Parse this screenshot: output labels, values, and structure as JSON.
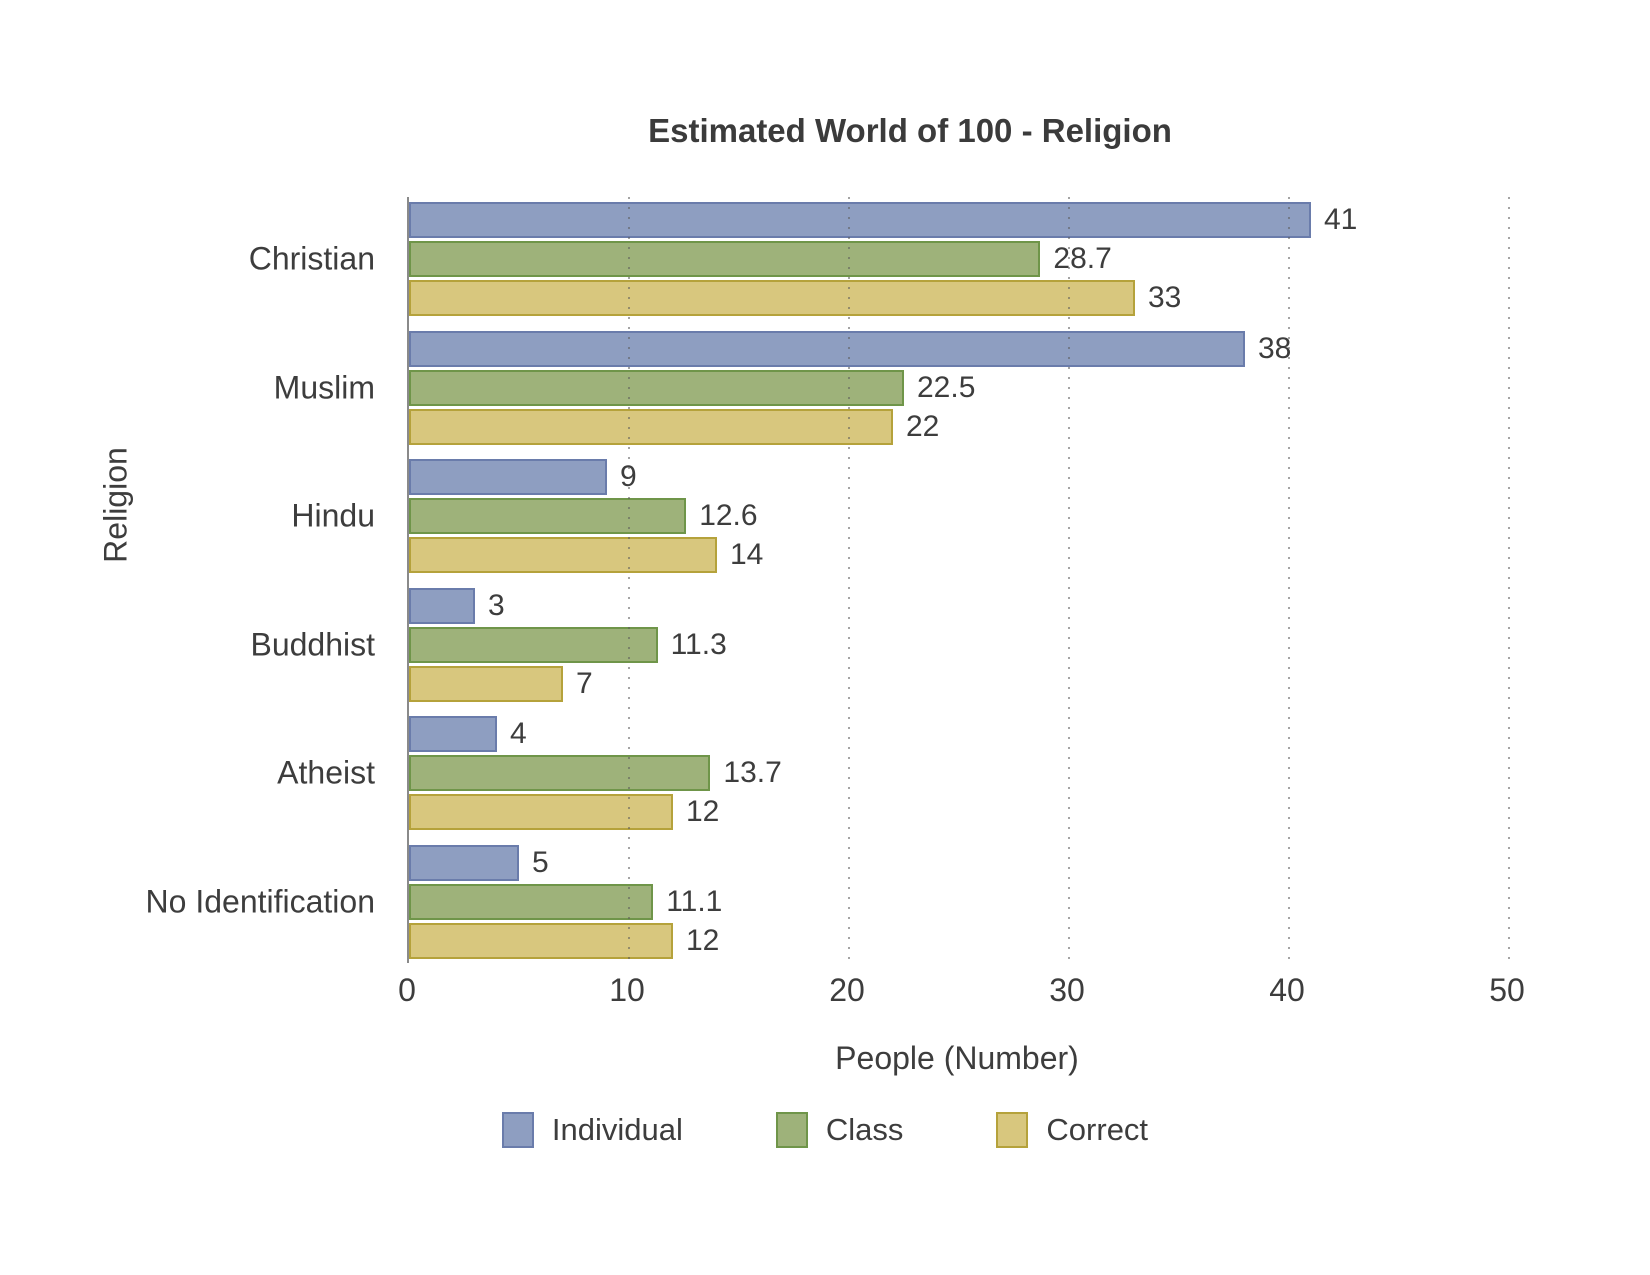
{
  "chart_data": {
    "type": "bar",
    "orientation": "horizontal",
    "title": "Estimated World of 100 - Religion",
    "xlabel": "People (Number)",
    "ylabel": "Religion",
    "categories": [
      "Christian",
      "Muslim",
      "Hindu",
      "Buddhist",
      "Atheist",
      "No Identification"
    ],
    "series": [
      {
        "name": "Individual",
        "color": "#8e9ec1",
        "border": "#6a7cab",
        "values": [
          41,
          38,
          9,
          3,
          4,
          5
        ]
      },
      {
        "name": "Class",
        "color": "#9eb27a",
        "border": "#6f9549",
        "values": [
          28.7,
          22.5,
          12.6,
          11.3,
          13.7,
          11.1
        ]
      },
      {
        "name": "Correct",
        "color": "#d8c77e",
        "border": "#b5a23b",
        "values": [
          33,
          22,
          14,
          7,
          12,
          12
        ]
      }
    ],
    "x_ticks": [
      0,
      10,
      20,
      30,
      40,
      50
    ],
    "xlim": [
      0,
      50
    ],
    "grid": "dotted-vertical-at-ticks",
    "legend_position": "bottom"
  },
  "colors": {
    "text": "#3d3d3d",
    "axis_line": "#8a8a8a",
    "background": "#ffffff"
  }
}
